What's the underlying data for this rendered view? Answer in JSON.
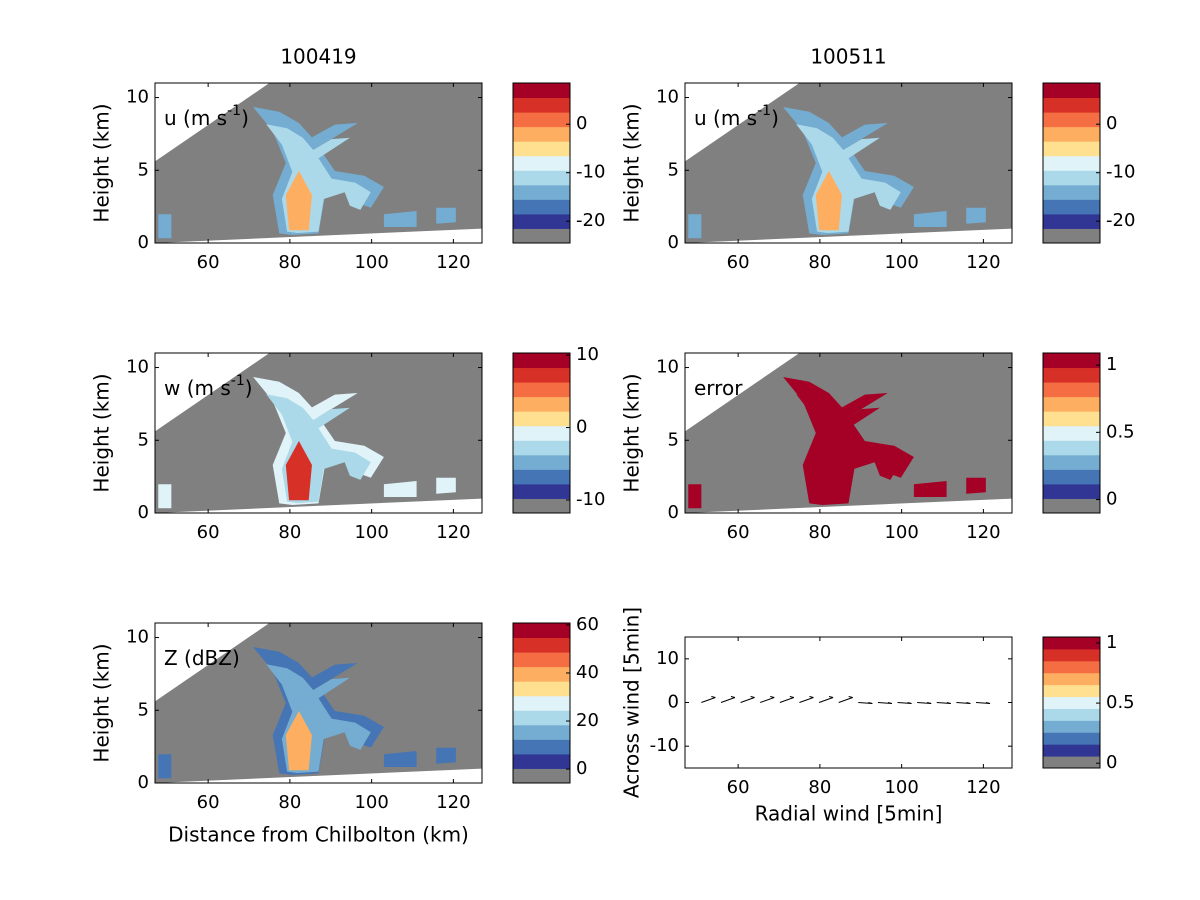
{
  "chart_data": [
    {
      "type": "heatmap",
      "title": "100419",
      "label": {
        "text": "u (m s",
        "sup": "-1",
        "end": ")"
      },
      "ylabel": "Height (km)",
      "xlim": [
        47,
        127
      ],
      "xticks": [
        60,
        80,
        100,
        120
      ],
      "ylim": [
        0,
        11
      ],
      "yticks": [
        0,
        5,
        10
      ],
      "clim": [
        -24.5,
        8.5
      ],
      "cticks": [
        -20,
        -10,
        0
      ]
    },
    {
      "type": "heatmap",
      "title": "100511",
      "label": {
        "text": "u (m s",
        "sup": "-1",
        "end": ")"
      },
      "ylabel": "Height (km)",
      "xlim": [
        47,
        127
      ],
      "xticks": [
        60,
        80,
        100,
        120
      ],
      "ylim": [
        0,
        11
      ],
      "yticks": [
        0,
        5,
        10
      ],
      "clim": [
        -24.5,
        8.5
      ],
      "cticks": [
        -20,
        -10,
        0
      ]
    },
    {
      "type": "heatmap",
      "label": {
        "text": "w (m s",
        "sup": "-1",
        "end": ")"
      },
      "ylabel": "Height (km)",
      "xlim": [
        47,
        127
      ],
      "xticks": [
        60,
        80,
        100,
        120
      ],
      "ylim": [
        0,
        11
      ],
      "yticks": [
        0,
        5,
        10
      ],
      "clim": [
        -11.8,
        10.3
      ],
      "cticks": [
        -10,
        0,
        10
      ]
    },
    {
      "type": "heatmap",
      "label": {
        "text": "error"
      },
      "ylabel": "Height (km)",
      "xlim": [
        47,
        127
      ],
      "xticks": [
        60,
        80,
        100,
        120
      ],
      "ylim": [
        0,
        11
      ],
      "yticks": [
        0,
        5,
        10
      ],
      "clim": [
        -0.1,
        1.09
      ],
      "cticks": [
        0,
        0.5,
        1
      ]
    },
    {
      "type": "heatmap",
      "label": {
        "text": "Z (dBZ)"
      },
      "ylabel": "Height (km)",
      "xlabel": "Distance from Chilbolton (km)",
      "xlim": [
        47,
        127
      ],
      "xticks": [
        60,
        80,
        100,
        120
      ],
      "ylim": [
        0,
        11
      ],
      "yticks": [
        0,
        5,
        10
      ],
      "clim": [
        -5.8,
        60.8
      ],
      "cticks": [
        0,
        20,
        40,
        60
      ]
    },
    {
      "type": "quiver",
      "ylabel": "Across wind [5min]",
      "xlabel": "Radial wind [5min]",
      "xlim": [
        47,
        127
      ],
      "xticks": [
        60,
        80,
        100,
        120
      ],
      "ylim": [
        -15,
        15
      ],
      "yticks": [
        -10,
        0,
        10
      ],
      "clim": [
        -0.04,
        1.05
      ],
      "cticks": [
        0,
        0.5,
        1
      ]
    }
  ],
  "colormap": [
    "#808080",
    "#313695",
    "#4575b4",
    "#74add1",
    "#abd9e9",
    "#e0f3f8",
    "#fee090",
    "#fdae61",
    "#f46d43",
    "#d73027",
    "#a50026"
  ]
}
